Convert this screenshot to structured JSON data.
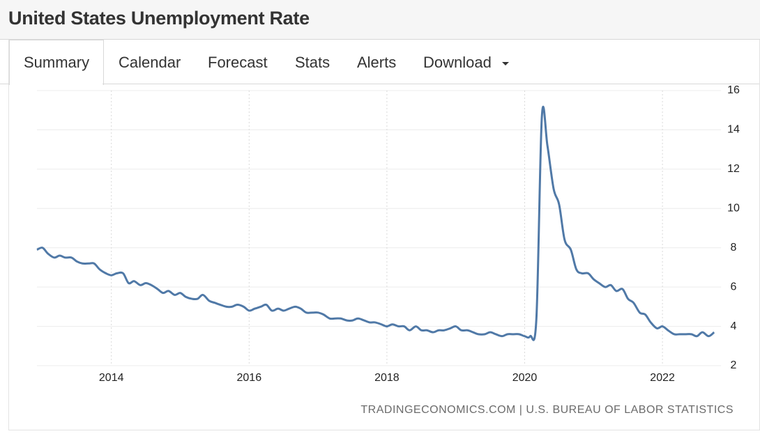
{
  "header": {
    "title": "United States Unemployment Rate"
  },
  "tabs": [
    "Summary",
    "Calendar",
    "Forecast",
    "Stats",
    "Alerts",
    "Download"
  ],
  "active_tab": 0,
  "source": "TRADINGECONOMICS.COM | U.S. BUREAU OF LABOR STATISTICS",
  "chart_data": {
    "type": "line",
    "x": [
      2012.92,
      2013.0,
      2013.08,
      2013.17,
      2013.25,
      2013.33,
      2013.42,
      2013.5,
      2013.58,
      2013.67,
      2013.75,
      2013.83,
      2013.92,
      2014.0,
      2014.08,
      2014.17,
      2014.25,
      2014.33,
      2014.42,
      2014.5,
      2014.58,
      2014.67,
      2014.75,
      2014.83,
      2014.92,
      2015.0,
      2015.08,
      2015.17,
      2015.25,
      2015.33,
      2015.42,
      2015.5,
      2015.58,
      2015.67,
      2015.75,
      2015.83,
      2015.92,
      2016.0,
      2016.08,
      2016.17,
      2016.25,
      2016.33,
      2016.42,
      2016.5,
      2016.58,
      2016.67,
      2016.75,
      2016.83,
      2016.92,
      2017.0,
      2017.08,
      2017.17,
      2017.25,
      2017.33,
      2017.42,
      2017.5,
      2017.58,
      2017.67,
      2017.75,
      2017.83,
      2017.92,
      2018.0,
      2018.08,
      2018.17,
      2018.25,
      2018.33,
      2018.42,
      2018.5,
      2018.58,
      2018.67,
      2018.75,
      2018.83,
      2018.92,
      2019.0,
      2019.08,
      2019.17,
      2019.25,
      2019.33,
      2019.42,
      2019.5,
      2019.58,
      2019.67,
      2019.75,
      2019.83,
      2019.92,
      2020.0,
      2020.08,
      2020.17,
      2020.25,
      2020.33,
      2020.42,
      2020.5,
      2020.58,
      2020.67,
      2020.75,
      2020.83,
      2020.92,
      2021.0,
      2021.08,
      2021.17,
      2021.25,
      2021.33,
      2021.42,
      2021.5,
      2021.58,
      2021.67,
      2021.75,
      2021.83,
      2021.92,
      2022.0,
      2022.08,
      2022.17,
      2022.25,
      2022.33,
      2022.42,
      2022.5,
      2022.58,
      2022.67,
      2022.75
    ],
    "series": [
      {
        "name": "Unemployment Rate",
        "color": "#5079a7",
        "values": [
          7.9,
          8.0,
          7.7,
          7.5,
          7.6,
          7.5,
          7.5,
          7.3,
          7.2,
          7.2,
          7.2,
          6.9,
          6.7,
          6.6,
          6.7,
          6.7,
          6.2,
          6.3,
          6.1,
          6.2,
          6.1,
          5.9,
          5.7,
          5.8,
          5.6,
          5.7,
          5.5,
          5.4,
          5.4,
          5.6,
          5.3,
          5.2,
          5.1,
          5.0,
          5.0,
          5.1,
          5.0,
          4.8,
          4.9,
          5.0,
          5.1,
          4.8,
          4.9,
          4.8,
          4.9,
          5.0,
          4.9,
          4.7,
          4.7,
          4.7,
          4.6,
          4.4,
          4.4,
          4.4,
          4.3,
          4.3,
          4.4,
          4.3,
          4.2,
          4.2,
          4.1,
          4.0,
          4.1,
          4.0,
          4.0,
          3.8,
          4.0,
          3.8,
          3.8,
          3.7,
          3.8,
          3.8,
          3.9,
          4.0,
          3.8,
          3.8,
          3.7,
          3.6,
          3.6,
          3.7,
          3.6,
          3.5,
          3.6,
          3.6,
          3.6,
          3.5,
          3.5,
          4.4,
          14.7,
          13.2,
          11.0,
          10.2,
          8.4,
          7.9,
          6.9,
          6.7,
          6.7,
          6.4,
          6.2,
          6.0,
          6.1,
          5.8,
          5.9,
          5.4,
          5.2,
          4.7,
          4.6,
          4.2,
          3.9,
          4.0,
          3.8,
          3.6,
          3.6,
          3.6,
          3.6,
          3.5,
          3.7,
          3.5,
          3.7
        ]
      }
    ],
    "xlim": [
      2012.92,
      2022.85
    ],
    "xticks": [
      2014,
      2016,
      2018,
      2020,
      2022
    ],
    "ylim": [
      2,
      16
    ],
    "yticks": [
      2,
      4,
      6,
      8,
      10,
      12,
      14,
      16
    ],
    "grid": true
  }
}
